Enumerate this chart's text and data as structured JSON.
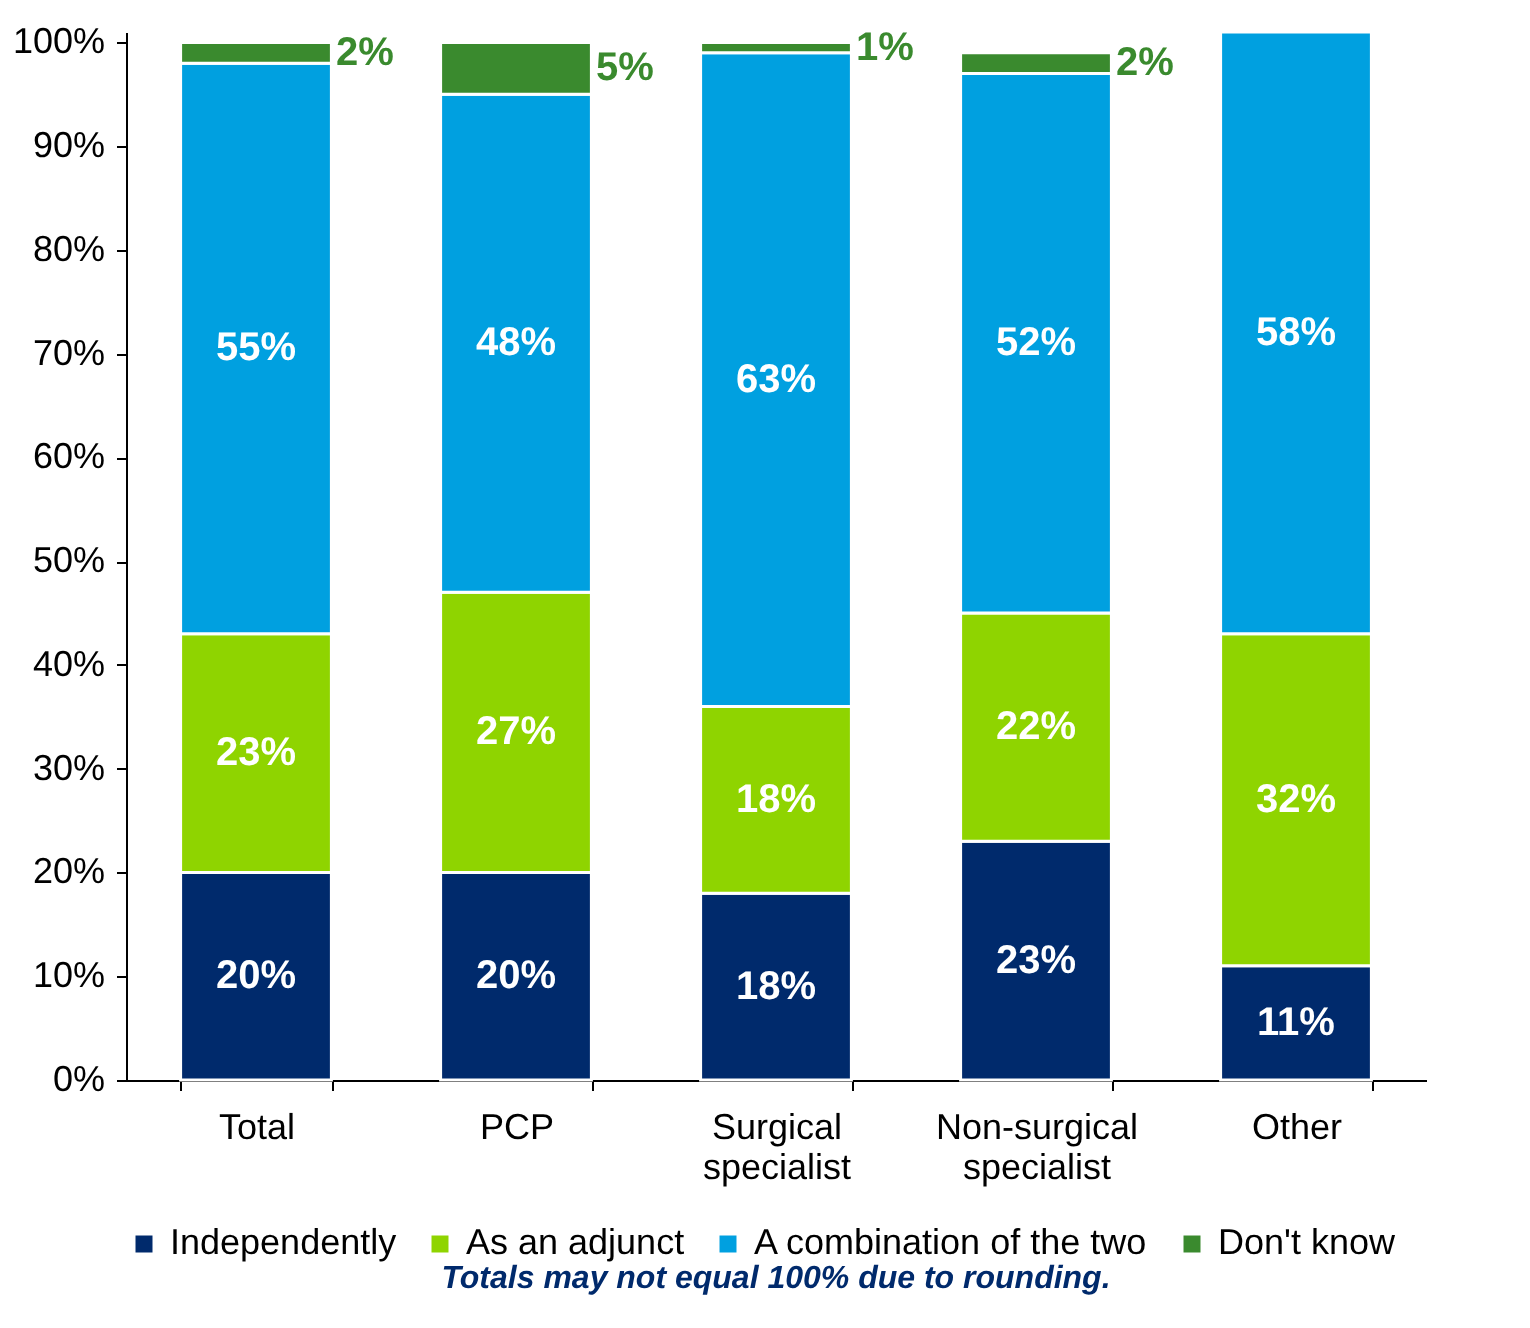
{
  "chart_data": {
    "type": "bar",
    "stacked": true,
    "categories": [
      "Total",
      "PCP",
      "Surgical specialist",
      "Non-surgical specialist",
      "Other"
    ],
    "series": [
      {
        "name": "Independently",
        "color": "#002a6c",
        "values": [
          20,
          20,
          18,
          23,
          11
        ],
        "value_labels": [
          "20%",
          "20%",
          "18%",
          "23%",
          "11%"
        ]
      },
      {
        "name": "As an adjunct",
        "color": "#8fd400",
        "values": [
          23,
          27,
          18,
          22,
          32
        ],
        "value_labels": [
          "23%",
          "27%",
          "18%",
          "22%",
          "32%"
        ]
      },
      {
        "name": "A combination of the two",
        "color": "#00a0e0",
        "values": [
          55,
          48,
          63,
          52,
          58
        ],
        "value_labels": [
          "55%",
          "48%",
          "63%",
          "52%",
          "58%"
        ]
      },
      {
        "name": "Don't know",
        "color": "#3a8a2e",
        "values": [
          2,
          5,
          1,
          2,
          null
        ],
        "value_labels": [
          "2%",
          "5%",
          "1%",
          "2%",
          null
        ]
      }
    ],
    "ylim": [
      0,
      101
    ],
    "yticks": [
      {
        "value": 0,
        "label": "0%"
      },
      {
        "value": 10,
        "label": "10%"
      },
      {
        "value": 20,
        "label": "20%"
      },
      {
        "value": 30,
        "label": "30%"
      },
      {
        "value": 40,
        "label": "40%"
      },
      {
        "value": 50,
        "label": "50%"
      },
      {
        "value": 60,
        "label": "60%"
      },
      {
        "value": 70,
        "label": "70%"
      },
      {
        "value": 80,
        "label": "80%"
      },
      {
        "value": 90,
        "label": "90%"
      },
      {
        "value": 100,
        "label": "100%"
      }
    ],
    "grid": false,
    "legend": "bottom",
    "annotations": [
      "Totals may not equal 100% due to rounding."
    ]
  }
}
